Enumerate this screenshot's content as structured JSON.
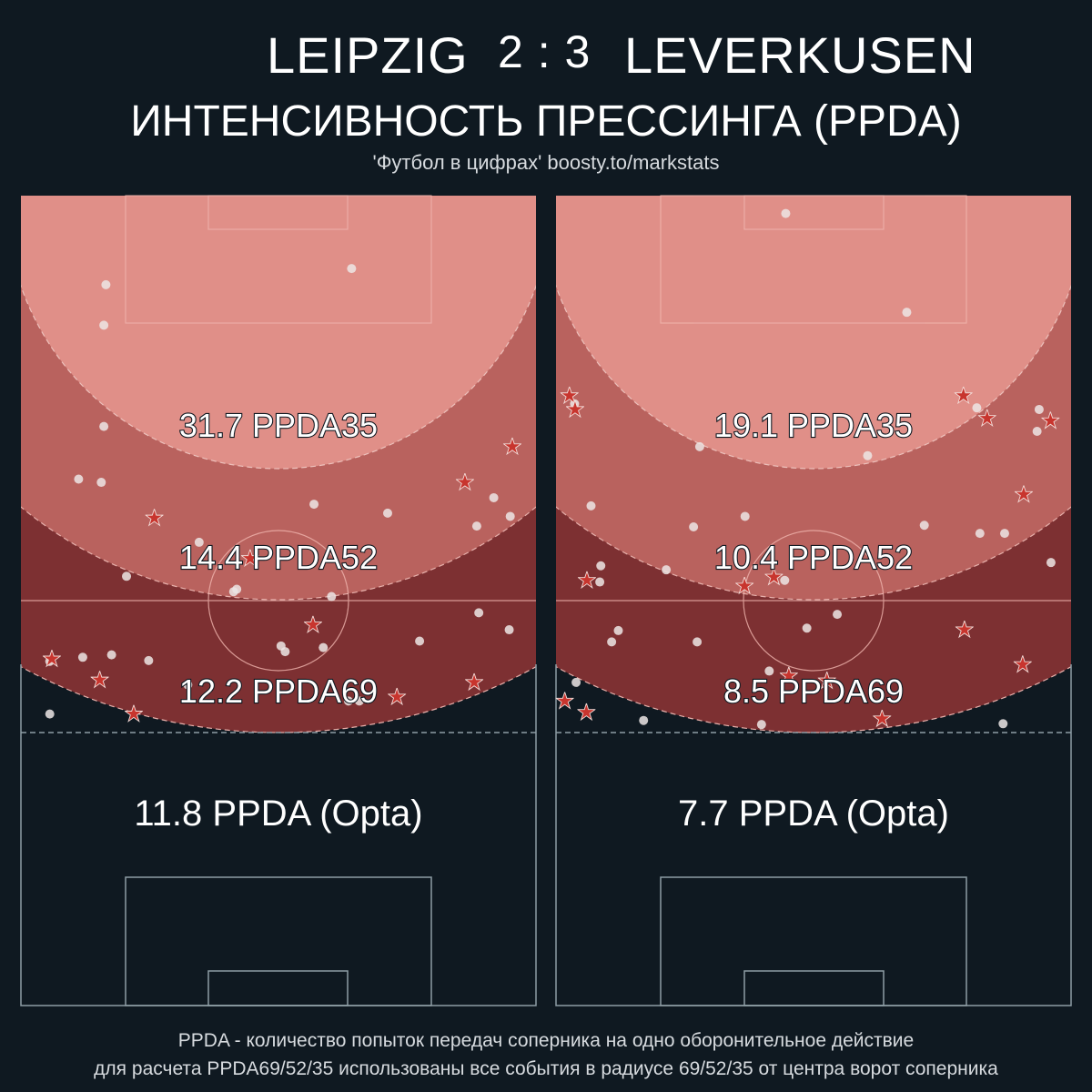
{
  "header": {
    "home_team": "LEIPZIG",
    "score": "2 : 3",
    "away_team": "LEVERKUSEN",
    "subtitle": "ИНТЕНСИВНОСТЬ ПРЕССИНГА (PPDA)",
    "credit": "'Футбол в цифрах' boosty.to/markstats"
  },
  "footnote": {
    "line1": "PPDA - количество попыток передач соперника на одно оборонительное действие",
    "line2": "для расчета PPDA69/52/35 использованы все события в радиусе 69/52/35 от центра ворот соперника"
  },
  "colors": {
    "background": "#0f1921",
    "zone35": "#e08f88",
    "zone52": "#b9625e",
    "zone69": "#7d3032",
    "pass_dot": "#ece6e5",
    "defensive_action_star": "#c8352e",
    "pitch_line": "#8e9ea5"
  },
  "chart_data": [
    {
      "type": "scatter",
      "team": "LEIPZIG",
      "ppda35_label": "31.7 PPDA35",
      "ppda52_label": "14.4 PPDA52",
      "ppda69_label": "12.2 PPDA69",
      "opta_label": "11.8 PPDA (Opta)",
      "ppda35": 31.7,
      "ppda52": 14.4,
      "ppda69": 12.2,
      "ppda_opta": 11.8,
      "passes": [
        [
          16.5,
          89
        ],
        [
          16.1,
          84
        ],
        [
          64.2,
          91
        ],
        [
          16.1,
          71.5
        ],
        [
          11.2,
          65
        ],
        [
          15.6,
          64.6
        ],
        [
          56.9,
          61.9
        ],
        [
          71.2,
          60.8
        ],
        [
          95,
          60.4
        ],
        [
          91.8,
          62.7
        ],
        [
          88.5,
          59.2
        ],
        [
          34.6,
          57.2
        ],
        [
          20.5,
          53
        ],
        [
          41.9,
          51.4
        ],
        [
          60.3,
          50.5
        ],
        [
          41.3,
          51.1
        ],
        [
          58.7,
          44.2
        ],
        [
          51.3,
          43.7
        ],
        [
          50.5,
          44.4
        ],
        [
          77.4,
          45
        ],
        [
          94.8,
          46.4
        ],
        [
          88.9,
          48.5
        ],
        [
          12,
          43
        ],
        [
          24.8,
          42.6
        ],
        [
          17.6,
          43.3
        ],
        [
          5.6,
          42.5
        ],
        [
          32.4,
          39.6
        ],
        [
          63.6,
          37.6
        ],
        [
          65.7,
          37.6
        ],
        [
          5.6,
          36
        ]
      ],
      "actions": [
        [
          95.4,
          69
        ],
        [
          86.2,
          64.6
        ],
        [
          25.9,
          60.2
        ],
        [
          44.5,
          55.2
        ],
        [
          56.7,
          47
        ],
        [
          6,
          42.8
        ],
        [
          15.3,
          40.2
        ],
        [
          88,
          39.9
        ],
        [
          73,
          38.1
        ],
        [
          21.9,
          36
        ]
      ]
    },
    {
      "team": "LEVERKUSEN",
      "type": "scatter",
      "ppda35_label": "19.1 PPDA35",
      "ppda52_label": "10.4 PPDA52",
      "ppda69_label": "8.5 PPDA69",
      "opta_label": "7.7 PPDA (Opta)",
      "ppda35": 19.1,
      "ppda52": 10.4,
      "ppda69": 8.5,
      "ppda_opta": 7.7,
      "passes": [
        [
          44.6,
          97.8
        ],
        [
          68.1,
          85.6
        ],
        [
          81.7,
          73.8
        ],
        [
          93.8,
          73.6
        ],
        [
          93.4,
          70.9
        ],
        [
          3.6,
          74.3
        ],
        [
          27.9,
          69
        ],
        [
          60.5,
          67.9
        ],
        [
          6.8,
          61.7
        ],
        [
          36.7,
          60.4
        ],
        [
          26.7,
          59.1
        ],
        [
          71.5,
          59.3
        ],
        [
          82.3,
          58.3
        ],
        [
          87.1,
          58.3
        ],
        [
          96.1,
          54.7
        ],
        [
          8.7,
          54.3
        ],
        [
          8.5,
          52.3
        ],
        [
          21.4,
          53.8
        ],
        [
          44.4,
          52.5
        ],
        [
          54.6,
          48.3
        ],
        [
          48.7,
          46.6
        ],
        [
          12.1,
          46.3
        ],
        [
          10.8,
          44.9
        ],
        [
          41.4,
          41.3
        ],
        [
          27.4,
          44.9
        ],
        [
          3.9,
          39.9
        ],
        [
          17,
          35.2
        ],
        [
          86.8,
          34.8
        ],
        [
          39.9,
          34.7
        ]
      ],
      "actions": [
        [
          2.6,
          75.3
        ],
        [
          3.7,
          73.6
        ],
        [
          79.1,
          75.3
        ],
        [
          83.7,
          72.5
        ],
        [
          96,
          72.2
        ],
        [
          90.8,
          63.1
        ],
        [
          6,
          52.5
        ],
        [
          36.6,
          51.8
        ],
        [
          42.3,
          52.9
        ],
        [
          79.3,
          46.4
        ],
        [
          90.6,
          42.1
        ],
        [
          45.2,
          40.7
        ],
        [
          52.6,
          40.1
        ],
        [
          1.7,
          37.6
        ],
        [
          5.9,
          36.2
        ],
        [
          63.3,
          35.4
        ]
      ]
    }
  ]
}
